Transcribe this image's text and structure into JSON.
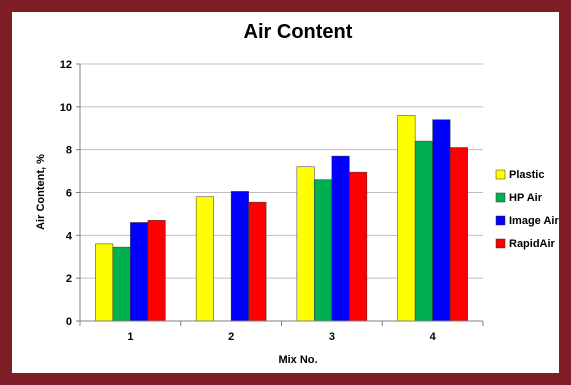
{
  "chart_data": {
    "type": "bar",
    "title": "Air Content",
    "xlabel": "Mix No.",
    "ylabel": "Air Content, %",
    "categories": [
      "1",
      "2",
      "3",
      "4"
    ],
    "ylim": [
      0,
      12
    ],
    "yticks": [
      "0",
      "2",
      "4",
      "6",
      "8",
      "10",
      "12"
    ],
    "grid": "horizontal",
    "legend_position": "right",
    "series": [
      {
        "name": "Plastic",
        "color": "#ffff00",
        "values": [
          3.6,
          5.8,
          7.2,
          9.6
        ]
      },
      {
        "name": "HP Air",
        "color": "#00b050",
        "values": [
          3.45,
          null,
          6.6,
          8.4
        ]
      },
      {
        "name": "Image Air",
        "color": "#0000ff",
        "values": [
          4.6,
          6.05,
          7.7,
          9.4
        ]
      },
      {
        "name": "RapidAir",
        "color": "#ff0000",
        "values": [
          4.7,
          5.55,
          6.95,
          8.1
        ]
      }
    ]
  },
  "colors": {
    "frame_border": "#7f1d26",
    "gridline": "#bfbfbf",
    "axis": "#808080"
  }
}
